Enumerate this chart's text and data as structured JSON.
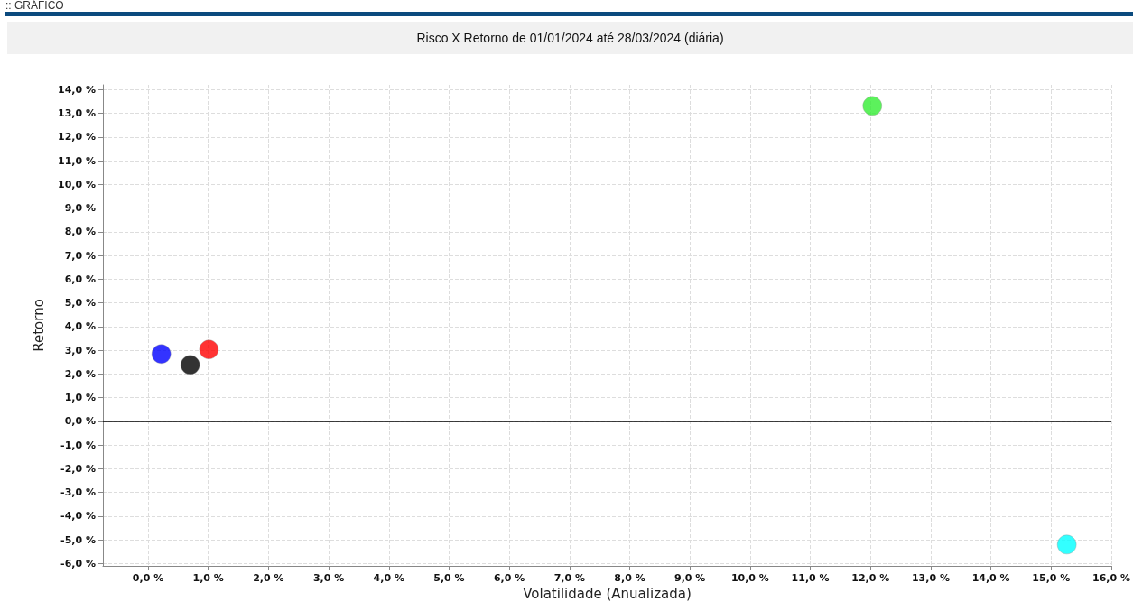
{
  "chart_data": {
    "type": "scatter",
    "title": "Risco X Retorno de 01/01/2024 até 28/03/2024 (diária)",
    "annotations": [
      ":: GRÁFICO"
    ],
    "xlabel": "Volatilidade (Anualizada)",
    "ylabel": "Retorno",
    "series": [
      {
        "color": "#0000ff",
        "x": [
          0.22
        ],
        "values": [
          2.84
        ]
      },
      {
        "color": "#000000",
        "x": [
          0.7
        ],
        "values": [
          2.38
        ]
      },
      {
        "color": "#ff0000",
        "x": [
          1.01
        ],
        "values": [
          3.03
        ]
      },
      {
        "color": "#33ee33",
        "x": [
          12.03
        ],
        "values": [
          13.31
        ]
      },
      {
        "color": "#00ffff",
        "x": [
          15.26
        ],
        "values": [
          -5.2
        ]
      }
    ],
    "xlim": [
      -0.75,
      16.0
    ],
    "xticks": [
      {
        "value": 0,
        "label": "0,0 %"
      },
      {
        "value": 1,
        "label": "1,0 %"
      },
      {
        "value": 2,
        "label": "2,0 %"
      },
      {
        "value": 3,
        "label": "3,0 %"
      },
      {
        "value": 4,
        "label": "4,0 %"
      },
      {
        "value": 5,
        "label": "5,0 %"
      },
      {
        "value": 6,
        "label": "6,0 %"
      },
      {
        "value": 7,
        "label": "7,0 %"
      },
      {
        "value": 8,
        "label": "8,0 %"
      },
      {
        "value": 9,
        "label": "9,0 %"
      },
      {
        "value": 10,
        "label": "10,0 %"
      },
      {
        "value": 11,
        "label": "11,0 %"
      },
      {
        "value": 12,
        "label": "12,0 %"
      },
      {
        "value": 13,
        "label": "13,0 %"
      },
      {
        "value": 14,
        "label": "14,0 %"
      },
      {
        "value": 15,
        "label": "15,0 %"
      },
      {
        "value": 16,
        "label": "16,0 %"
      }
    ],
    "ylim": [
      -6.1,
      14.2
    ],
    "yticks": [
      {
        "value": -6,
        "label": "-6,0 %"
      },
      {
        "value": -5,
        "label": "-5,0 %"
      },
      {
        "value": -4,
        "label": "-4,0 %"
      },
      {
        "value": -3,
        "label": "-3,0 %"
      },
      {
        "value": -2,
        "label": "-2,0 %"
      },
      {
        "value": -1,
        "label": "-1,0 %"
      },
      {
        "value": 0,
        "label": "0,0 %"
      },
      {
        "value": 1,
        "label": "1,0 %"
      },
      {
        "value": 2,
        "label": "2,0 %"
      },
      {
        "value": 3,
        "label": "3,0 %"
      },
      {
        "value": 4,
        "label": "4,0 %"
      },
      {
        "value": 5,
        "label": "5,0 %"
      },
      {
        "value": 6,
        "label": "6,0 %"
      },
      {
        "value": 7,
        "label": "7,0 %"
      },
      {
        "value": 8,
        "label": "8,0 %"
      },
      {
        "value": 9,
        "label": "9,0 %"
      },
      {
        "value": 10,
        "label": "10,0 %"
      },
      {
        "value": 11,
        "label": "11,0 %"
      },
      {
        "value": 12,
        "label": "12,0 %"
      },
      {
        "value": 13,
        "label": "13,0 %"
      },
      {
        "value": 14,
        "label": "14,0 %"
      }
    ],
    "ref_lines": [
      {
        "axis": "y",
        "value": 0,
        "color": "#000000",
        "line_style": "solid"
      }
    ],
    "grid": true,
    "marker": "circle"
  }
}
